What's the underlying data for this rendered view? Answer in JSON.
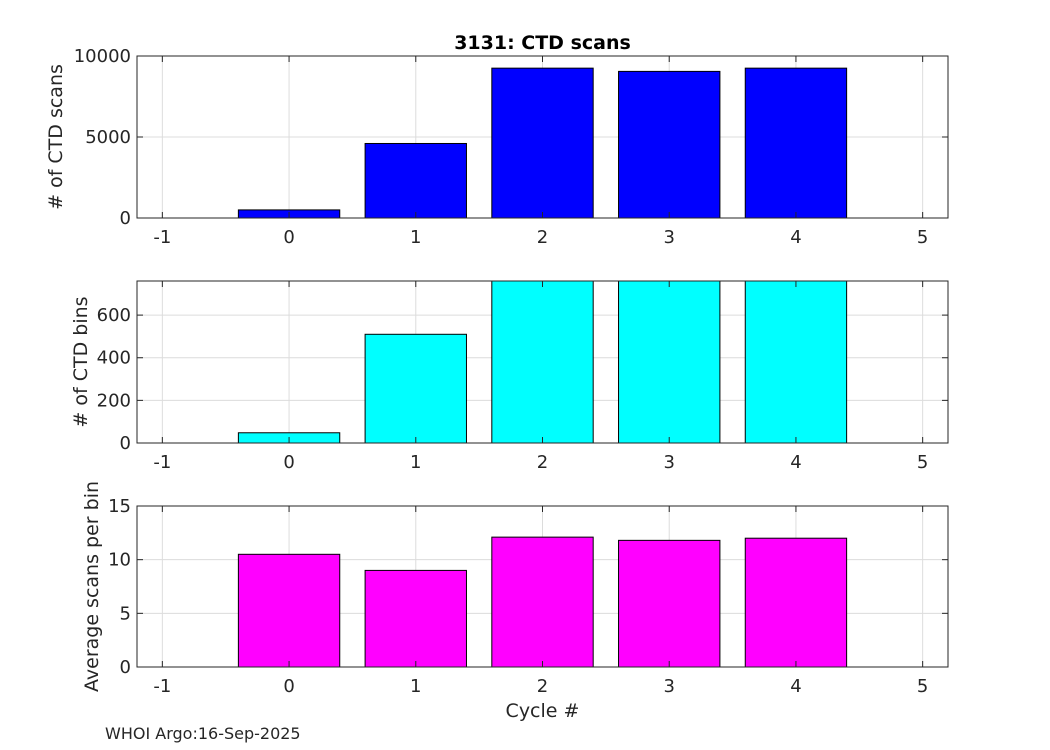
{
  "chart_data": [
    {
      "type": "bar",
      "title": "3131: CTD scans",
      "xlabel": "",
      "ylabel": "# of CTD scans",
      "x": [
        0,
        1,
        2,
        3,
        4
      ],
      "values": [
        500,
        4600,
        9250,
        9050,
        9250
      ],
      "xlim": [
        -1.2,
        5.2
      ],
      "ylim": [
        0,
        10000
      ],
      "xticks": [
        "-1",
        "0",
        "1",
        "2",
        "3",
        "4",
        "5"
      ],
      "yticks": [
        "0",
        "5000",
        "10000"
      ],
      "color": "#0000ff",
      "grid": true
    },
    {
      "type": "bar",
      "title": "",
      "xlabel": "",
      "ylabel": "# of CTD bins",
      "x": [
        0,
        1,
        2,
        3,
        4
      ],
      "values": [
        48,
        510,
        780,
        765,
        780
      ],
      "xlim": [
        -1.2,
        5.2
      ],
      "ylim": [
        0,
        760
      ],
      "xticks": [
        "-1",
        "0",
        "1",
        "2",
        "3",
        "4",
        "5"
      ],
      "yticks": [
        "0",
        "200",
        "400",
        "600"
      ],
      "color": "#00ffff",
      "grid": true
    },
    {
      "type": "bar",
      "title": "",
      "xlabel": "Cycle #",
      "ylabel": "Average scans per bin",
      "x": [
        0,
        1,
        2,
        3,
        4
      ],
      "values": [
        10.5,
        9.0,
        12.1,
        11.8,
        12.0
      ],
      "xlim": [
        -1.2,
        5.2
      ],
      "ylim": [
        0,
        15
      ],
      "xticks": [
        "-1",
        "0",
        "1",
        "2",
        "3",
        "4",
        "5"
      ],
      "yticks": [
        "0",
        "5",
        "10",
        "15"
      ],
      "color": "#ff00ff",
      "grid": true
    }
  ],
  "footer": "WHOI Argo:16-Sep-2025"
}
